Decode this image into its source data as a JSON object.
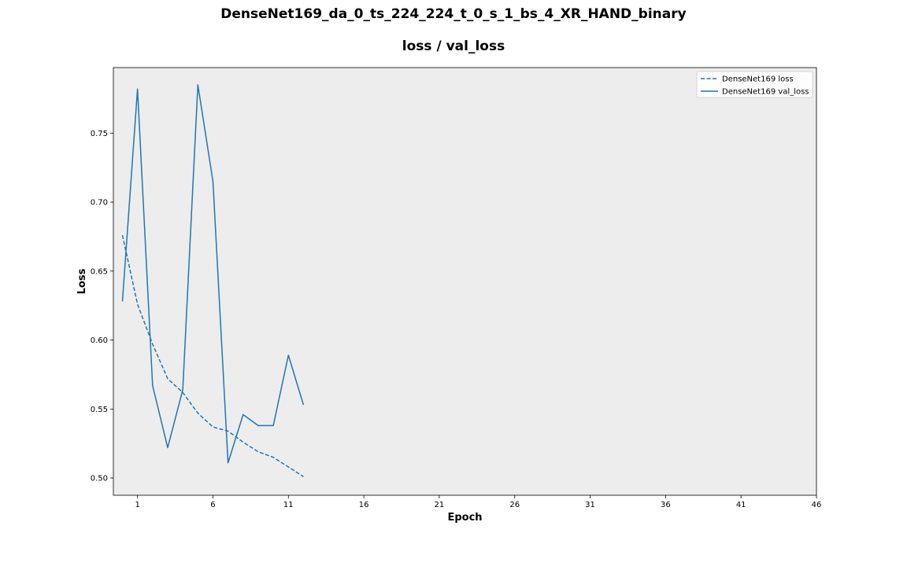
{
  "header": {
    "title": "DenseNet169_da_0_ts_224_224_t_0_s_1_bs_4_XR_HAND_binary",
    "subtitle": "loss / val_loss"
  },
  "chart_data": {
    "type": "line",
    "xlabel": "Epoch",
    "ylabel": "Loss",
    "xlim": [
      -0.6,
      46
    ],
    "ylim": [
      0.4875,
      0.7975
    ],
    "xticks": [
      1,
      6,
      11,
      16,
      21,
      26,
      31,
      36,
      41,
      46
    ],
    "yticks": [
      0.5,
      0.55,
      0.6,
      0.65,
      0.7,
      0.75
    ],
    "ytick_labels": [
      "0.50",
      "0.55",
      "0.60",
      "0.65",
      "0.70",
      "0.75"
    ],
    "grid": false,
    "background": "#ededed",
    "legend_position": "top-right",
    "series": [
      {
        "name": "DenseNet169 loss",
        "style": "dashed",
        "color": "#1f77b4",
        "x": [
          0,
          1,
          2,
          3,
          4,
          5,
          6,
          7,
          8,
          9,
          10,
          11,
          12
        ],
        "values": [
          0.676,
          0.626,
          0.597,
          0.572,
          0.562,
          0.547,
          0.537,
          0.534,
          0.526,
          0.519,
          0.515,
          0.508,
          0.501
        ]
      },
      {
        "name": "DenseNet169 val_loss",
        "style": "solid",
        "color": "#1f77b4",
        "x": [
          0,
          1,
          2,
          3,
          4,
          5,
          6,
          7,
          8,
          9,
          10,
          11,
          12
        ],
        "values": [
          0.628,
          0.782,
          0.567,
          0.522,
          0.564,
          0.785,
          0.715,
          0.511,
          0.546,
          0.538,
          0.538,
          0.589,
          0.553
        ]
      }
    ]
  }
}
